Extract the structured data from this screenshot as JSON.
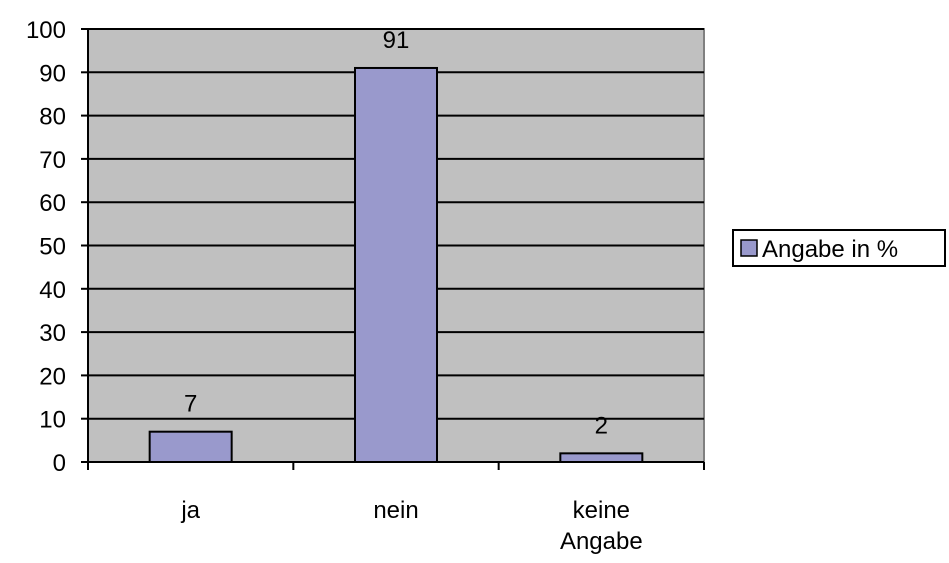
{
  "chart_data": {
    "type": "bar",
    "categories": [
      [
        "ja"
      ],
      [
        "nein"
      ],
      [
        "keine",
        "Angabe"
      ]
    ],
    "series": [
      {
        "name": "Angabe in %",
        "values": [
          7,
          91,
          2
        ]
      }
    ],
    "data_labels": [
      "7",
      "91",
      "2"
    ],
    "title": "",
    "xlabel": "",
    "ylabel": "",
    "ylim": [
      0,
      100
    ],
    "yticks": [
      0,
      10,
      20,
      30,
      40,
      50,
      60,
      70,
      80,
      90,
      100
    ],
    "grid": true,
    "legend": "right",
    "colors": {
      "plot_background": "#c0c0c0",
      "bar_fill": "#9999cc",
      "bar_stroke": "#000000",
      "gridline": "#000000"
    }
  }
}
